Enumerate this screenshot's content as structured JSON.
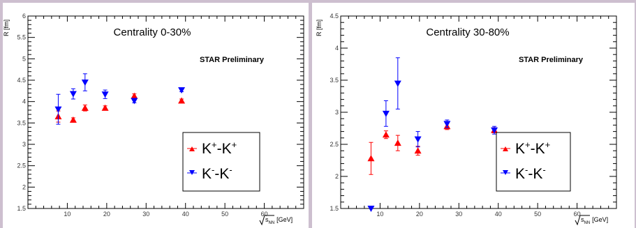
{
  "chart_data": [
    {
      "type": "scatter",
      "title": "Centrality 0-30%",
      "annotation": "STAR Preliminary",
      "ylabel": "R [fm]",
      "xlabel": {
        "base": "s",
        "sub": "NN",
        "unit": "[GeV]"
      },
      "xlim": [
        0,
        70
      ],
      "ylim": [
        1.5,
        6
      ],
      "xticks": [
        10,
        20,
        30,
        40,
        50,
        60
      ],
      "yticks": [
        1.5,
        2,
        2.5,
        3,
        3.5,
        4,
        4.5,
        5,
        5.5,
        6
      ],
      "grid": false,
      "legend_position": "bottom-right",
      "series": [
        {
          "name": "K+-K+",
          "label": {
            "base1": "K",
            "sup1": "+",
            "mid": "-K",
            "sup2": "+"
          },
          "marker": "triangle-up",
          "color": "#ff0000",
          "x": [
            7.7,
            11.5,
            14.5,
            19.6,
            27,
            39
          ],
          "y": [
            3.65,
            3.57,
            3.85,
            3.85,
            4.13,
            4.02
          ],
          "err": [
            0.13,
            0.05,
            0.07,
            0.05,
            0.05,
            0.04
          ]
        },
        {
          "name": "K--K-",
          "label": {
            "base1": "K",
            "sup1": "-",
            "mid": "-K",
            "sup2": "-"
          },
          "marker": "triangle-down",
          "color": "#0000ff",
          "x": [
            7.7,
            11.5,
            14.5,
            19.6,
            27,
            39
          ],
          "y": [
            3.82,
            4.18,
            4.45,
            4.17,
            4.02,
            4.27
          ],
          "err": [
            0.35,
            0.12,
            0.2,
            0.1,
            0.05,
            0.04
          ]
        }
      ]
    },
    {
      "type": "scatter",
      "title": "Centrality 30-80%",
      "annotation": "STAR Preliminary",
      "ylabel": "R [fm]",
      "xlabel": {
        "base": "s",
        "sub": "NN",
        "unit": "[GeV]"
      },
      "xlim": [
        0,
        70
      ],
      "ylim": [
        1.5,
        4.5
      ],
      "xticks": [
        10,
        20,
        30,
        40,
        50,
        60
      ],
      "yticks": [
        1.5,
        2,
        2.5,
        3,
        3.5,
        4,
        4.5
      ],
      "grid": false,
      "legend_position": "bottom-right",
      "series": [
        {
          "name": "K+-K+",
          "label": {
            "base1": "K",
            "sup1": "+",
            "mid": "-K",
            "sup2": "+"
          },
          "marker": "triangle-up",
          "color": "#ff0000",
          "x": [
            7.7,
            11.5,
            14.5,
            19.6,
            27,
            39
          ],
          "y": [
            2.28,
            2.65,
            2.52,
            2.4,
            2.78,
            2.72
          ],
          "err": [
            0.25,
            0.06,
            0.12,
            0.07,
            0.05,
            0.04
          ]
        },
        {
          "name": "K--K-",
          "label": {
            "base1": "K",
            "sup1": "-",
            "mid": "-K",
            "sup2": "-"
          },
          "marker": "triangle-down",
          "color": "#0000ff",
          "x": [
            7.7,
            11.5,
            14.5,
            19.6,
            27,
            39
          ],
          "y": [
            1.5,
            2.98,
            3.45,
            2.58,
            2.82,
            2.72
          ],
          "err": [
            0,
            0.2,
            0.4,
            0.12,
            0.06,
            0.06
          ]
        }
      ]
    }
  ]
}
